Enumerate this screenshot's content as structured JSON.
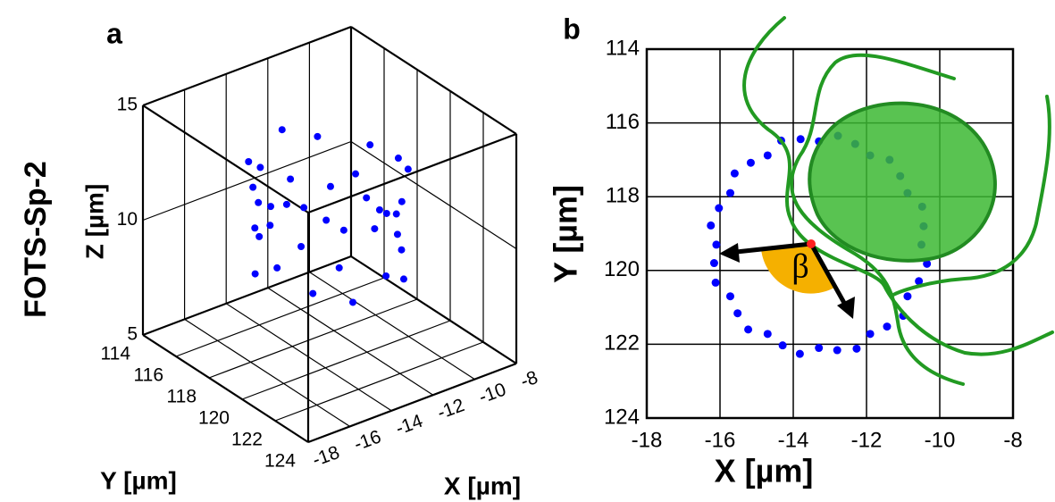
{
  "figure": {
    "row_label": "FOTS-Sp-2"
  },
  "chart_data": [
    {
      "type": "scatter3d",
      "panel_label": "a",
      "x_label": "X [µm]",
      "y_label": "Y [µm]",
      "z_label": "Z [µm]",
      "xlim": [
        -18,
        -8
      ],
      "ylim": [
        114,
        124
      ],
      "zlim": [
        5,
        15
      ],
      "xticks": [
        -18,
        -16,
        -14,
        -12,
        -10,
        -8
      ],
      "yticks": [
        114,
        116,
        118,
        120,
        122,
        124
      ],
      "zticks": [
        5,
        10,
        15
      ],
      "grid": true,
      "color": "#0000ff",
      "x": [
        -10.5,
        -10.35,
        -10.57,
        -10.88,
        -11.0,
        -11.44,
        -11.9,
        -12.27,
        -12.8,
        -13.3,
        -13.82,
        -14.29,
        -14.7,
        -15.23,
        -15.52,
        -15.72,
        -16.12,
        -16.16,
        -16.1,
        -16.25,
        -16.03,
        -15.72,
        -15.6,
        -15.16,
        -14.7,
        -14.33,
        -13.8,
        -13.3,
        -12.78,
        -12.31,
        -11.9,
        -11.37,
        -11.08,
        -10.88,
        -10.48,
        -10.44
      ],
      "y": [
        119.3,
        119.82,
        120.29,
        120.7,
        121.23,
        121.52,
        121.72,
        122.12,
        122.16,
        122.1,
        122.26,
        122.03,
        121.72,
        121.6,
        121.16,
        120.7,
        120.33,
        119.8,
        119.3,
        118.78,
        118.31,
        117.9,
        117.37,
        117.08,
        116.88,
        116.48,
        116.44,
        116.5,
        116.35,
        116.57,
        116.88,
        117.0,
        117.44,
        117.9,
        118.27,
        118.8
      ],
      "z": [
        10.2,
        12.8,
        9.1,
        11.5,
        13.2,
        8.7,
        10.9,
        12.1,
        9.6,
        11.8,
        13.4,
        8.9,
        10.4,
        12.6,
        9.3,
        11.2,
        13.0,
        10.0,
        11.6,
        12.4,
        9.0,
        10.7,
        13.3,
        11.9,
        9.5,
        12.2,
        10.3,
        13.5,
        11.1,
        9.8,
        12.9,
        10.6,
        8.8,
        11.4,
        12.7,
        10.1
      ]
    },
    {
      "type": "scatter",
      "panel_label": "b",
      "x_label": "X [µm]",
      "y_label": "Y [µm]",
      "xlim": [
        -18,
        -8
      ],
      "ylim": [
        124,
        114
      ],
      "y_inverted": true,
      "xticks": [
        -18,
        -16,
        -14,
        -12,
        -10,
        -8
      ],
      "yticks": [
        114,
        116,
        118,
        120,
        122,
        124
      ],
      "grid": true,
      "color": "#0000ff",
      "annotation": "β",
      "x": [
        -10.5,
        -10.35,
        -10.57,
        -10.88,
        -11.0,
        -11.44,
        -11.9,
        -12.27,
        -12.8,
        -13.3,
        -13.82,
        -14.29,
        -14.7,
        -15.23,
        -15.52,
        -15.72,
        -16.12,
        -16.16,
        -16.1,
        -16.25,
        -16.03,
        -15.72,
        -15.6,
        -15.16,
        -14.7,
        -14.33,
        -13.8,
        -13.3,
        -12.78,
        -12.31,
        -11.9,
        -11.37,
        -11.08,
        -10.88,
        -10.48,
        -10.44
      ],
      "y": [
        119.3,
        119.82,
        120.29,
        120.7,
        121.23,
        121.52,
        121.72,
        122.12,
        122.16,
        122.1,
        122.26,
        122.03,
        121.72,
        121.6,
        121.16,
        120.7,
        120.33,
        119.8,
        119.3,
        118.78,
        118.31,
        117.9,
        117.37,
        117.08,
        116.88,
        116.48,
        116.44,
        116.5,
        116.35,
        116.57,
        116.88,
        117.0,
        117.44,
        117.9,
        118.27,
        118.8
      ]
    }
  ]
}
